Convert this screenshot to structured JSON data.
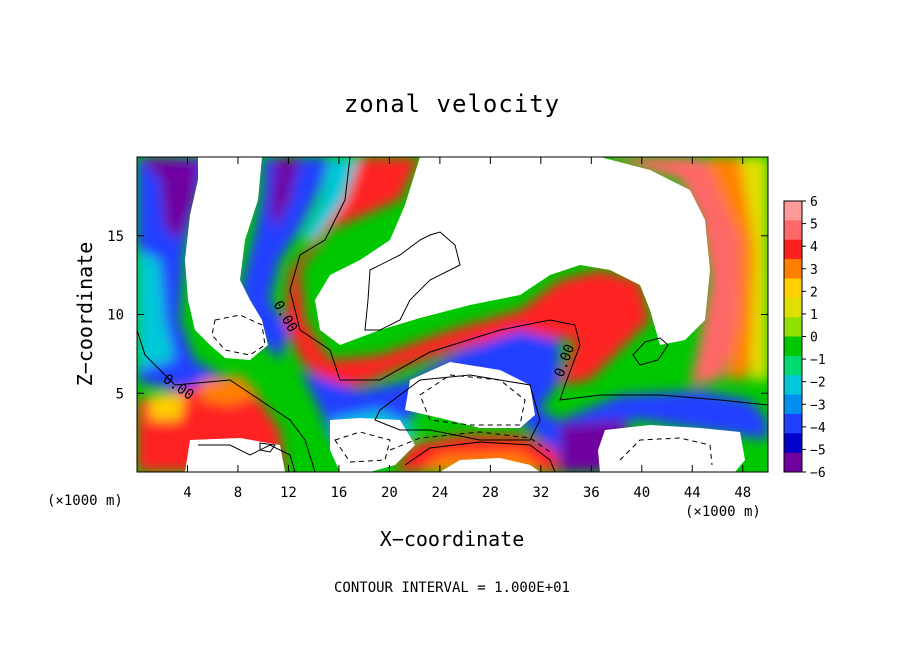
{
  "chart_data": {
    "type": "heatmap",
    "title": "zonal velocity",
    "xlabel": "X−coordinate",
    "ylabel": "Z−coordinate",
    "x_unit_label": "(×1000 m)",
    "contour_interval_text": "CONTOUR INTERVAL = 1.000E+01",
    "contour_label": "0.00",
    "xlim": [
      0,
      50
    ],
    "ylim": [
      0,
      20
    ],
    "x_ticks": [
      4,
      8,
      12,
      16,
      20,
      24,
      28,
      32,
      36,
      40,
      44,
      48
    ],
    "y_ticks": [
      5,
      10,
      15
    ],
    "colorbar": {
      "levels": [
        6,
        5,
        4,
        3,
        2,
        1,
        0,
        -1,
        -2,
        -3,
        -4,
        -5,
        -6
      ],
      "colors": [
        "#ff9a9a",
        "#ff6868",
        "#ff2020",
        "#ff8000",
        "#ffd000",
        "#e0e000",
        "#90e000",
        "#00c800",
        "#00d870",
        "#00c8d8",
        "#0090f0",
        "#2040ff",
        "#0000c8",
        "#7000a0"
      ]
    }
  }
}
